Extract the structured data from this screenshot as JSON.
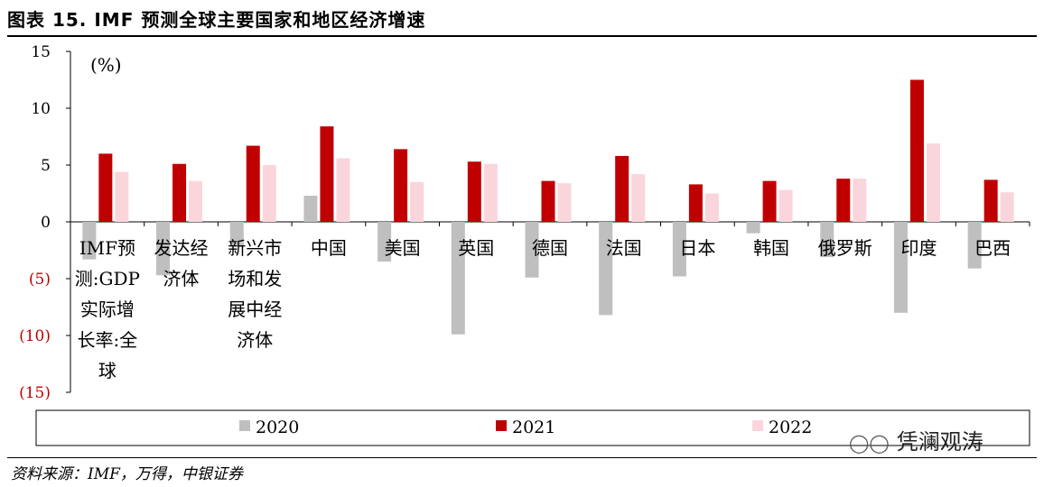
{
  "header": {
    "title": "图表 15. IMF 预测全球主要国家和地区经济增速"
  },
  "source": "资料来源：IMF，万得，中银证券",
  "watermark": {
    "text": "凭澜观涛",
    "icon": "wechat-icon"
  },
  "colors": {
    "s2020": "#bfbfbf",
    "s2021": "#c00000",
    "s2022": "#fbd5dc",
    "negative_tick": "#c00000"
  },
  "chart_data": {
    "type": "bar",
    "unit_label": "(%)",
    "ylim": [
      -15,
      15
    ],
    "yticks": [
      15,
      10,
      5,
      0,
      -5,
      -10,
      -15
    ],
    "ytick_labels": [
      "15",
      "10",
      "5",
      "0",
      "(5)",
      "(10)",
      "(15)"
    ],
    "categories": [
      [
        "IMF预",
        "测:GDP",
        "实际增",
        "长率:全",
        "球"
      ],
      [
        "发达经",
        "济体"
      ],
      [
        "新兴市",
        "场和发",
        "展中经",
        "济体"
      ],
      [
        "中国"
      ],
      [
        "美国"
      ],
      [
        "英国"
      ],
      [
        "德国"
      ],
      [
        "法国"
      ],
      [
        "日本"
      ],
      [
        "韩国"
      ],
      [
        "俄罗斯"
      ],
      [
        "印度"
      ],
      [
        "巴西"
      ]
    ],
    "series": [
      {
        "name": "2020",
        "values": [
          -3.3,
          -4.7,
          -2.2,
          2.3,
          -3.5,
          -9.9,
          -4.9,
          -8.2,
          -4.8,
          -1.0,
          -3.1,
          -8.0,
          -4.1
        ]
      },
      {
        "name": "2021",
        "values": [
          6.0,
          5.1,
          6.7,
          8.4,
          6.4,
          5.3,
          3.6,
          5.8,
          3.3,
          3.6,
          3.8,
          12.5,
          3.7
        ]
      },
      {
        "name": "2022",
        "values": [
          4.4,
          3.6,
          5.0,
          5.6,
          3.5,
          5.1,
          3.4,
          4.2,
          2.5,
          2.8,
          3.8,
          6.9,
          2.6
        ]
      }
    ],
    "legend_position": "bottom"
  }
}
